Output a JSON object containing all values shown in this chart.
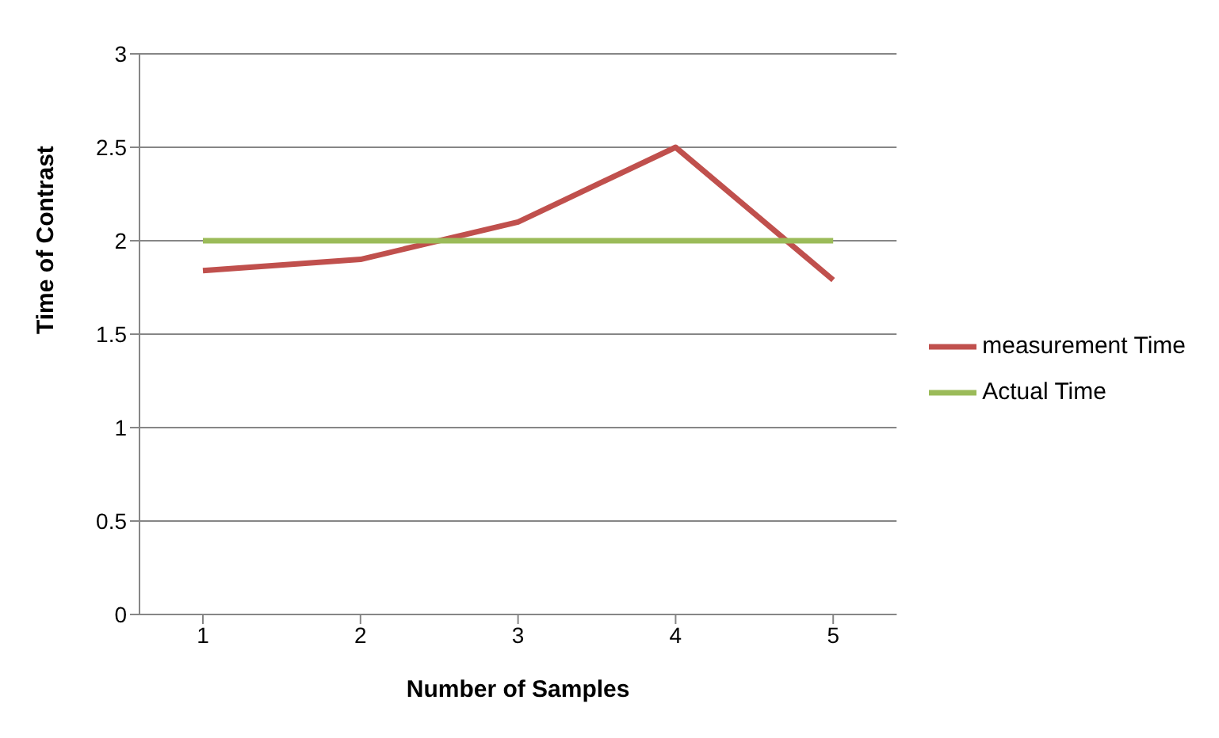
{
  "chart_data": {
    "type": "line",
    "xlabel": "Number of Samples",
    "ylabel": "Time of Contrast",
    "categories": [
      "1",
      "2",
      "3",
      "4",
      "5"
    ],
    "series": [
      {
        "name": "measurement Time",
        "color": "#c0504d",
        "values": [
          1.84,
          1.9,
          2.1,
          2.5,
          1.79
        ]
      },
      {
        "name": "Actual Time",
        "color": "#9bbb59",
        "values": [
          2,
          2,
          2,
          2,
          2
        ]
      }
    ],
    "ylim": [
      0,
      3
    ],
    "yticks": [
      0,
      0.5,
      1,
      1.5,
      2,
      2.5,
      3
    ],
    "grid": "y",
    "legend": "right",
    "marker": "none",
    "line_style": "solid"
  }
}
